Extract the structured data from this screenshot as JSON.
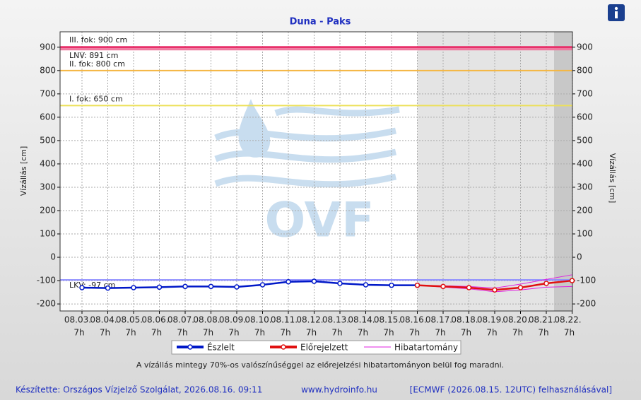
{
  "chart_data": {
    "type": "line",
    "title": "Duna - Paks",
    "y_label": "Vízállás [cm]",
    "y2_label": "Vízállás [cm]",
    "categories": [
      "08.03.",
      "08.04.",
      "08.05.",
      "08.06.",
      "08.07.",
      "08.08.",
      "08.09.",
      "08.10.",
      "08.11.",
      "08.12.",
      "08.13.",
      "08.14.",
      "08.15.",
      "08.16.",
      "08.17.",
      "08.18.",
      "08.19.",
      "08.20.",
      "08.21.",
      "08.22."
    ],
    "category_time": "7h",
    "series": [
      {
        "name": "Észlelt",
        "color": "#0018c8",
        "values": [
          -130,
          -132,
          -130,
          -128,
          -125,
          -125,
          -127,
          -118,
          -105,
          -103,
          -112,
          -118,
          -120,
          -120,
          null,
          null,
          null,
          null,
          null,
          null
        ]
      },
      {
        "name": "Előrejelzett",
        "color": "#e01010",
        "values": [
          null,
          null,
          null,
          null,
          null,
          null,
          null,
          null,
          null,
          null,
          null,
          null,
          null,
          -120,
          -125,
          -130,
          -140,
          -130,
          -112,
          -100
        ]
      },
      {
        "name": "Hibatartomány",
        "color": "#e020e0",
        "values": [
          null,
          null,
          null,
          null,
          null,
          null,
          null,
          null,
          null,
          null,
          null,
          null,
          null,
          -120,
          -122,
          -125,
          -132,
          -115,
          -95,
          -75
        ],
        "lower": [
          null,
          null,
          null,
          null,
          null,
          null,
          null,
          null,
          null,
          null,
          null,
          null,
          null,
          -120,
          -128,
          -135,
          -148,
          -140,
          -128,
          -125
        ]
      }
    ],
    "thresholds": [
      {
        "label": "III. fok: 900 cm",
        "value": 900,
        "color": "#e8306a"
      },
      {
        "label": "LNV: 891 cm",
        "value": 891,
        "color": "#f07aa0"
      },
      {
        "label": "II. fok: 800 cm",
        "value": 800,
        "color": "#f5b642"
      },
      {
        "label": "I. fok: 650 cm",
        "value": 650,
        "color": "#ece05a"
      },
      {
        "label": "LKV: -97 cm",
        "value": -97,
        "color": "#8a8aff"
      }
    ],
    "ylim": [
      -230,
      966
    ],
    "yticks": [
      -200,
      -100,
      0,
      100,
      200,
      300,
      400,
      500,
      600,
      700,
      800,
      900
    ],
    "grid": true,
    "watermark": "OVF",
    "note": "A vízállás mintegy 70%-os valószínűséggel az előrejelzési hibatartományon belül fog maradni.",
    "footer": {
      "author": "Készítette: Országos Vízjelző Szolgálat, 2026.08.16. 09:11",
      "site": "www.hydroinfo.hu",
      "model": "[ECMWF (2026.08.15. 12UTC) felhasználásával]"
    }
  }
}
